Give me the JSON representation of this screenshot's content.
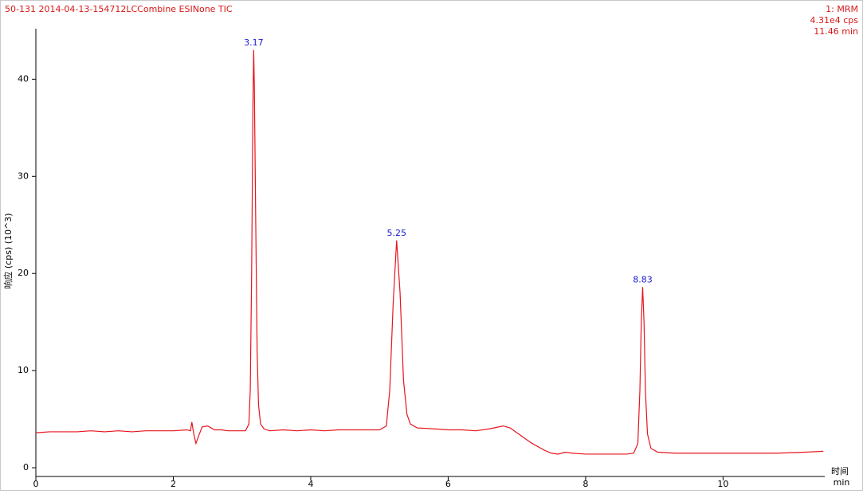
{
  "chart_data": {
    "type": "line",
    "title": "50-131 2014-04-13-154712LCCombine ESINone TIC",
    "info": [
      "1: MRM",
      "4.31e4 cps",
      "11.46 min"
    ],
    "y_label": "响应 (cps) (10^3)",
    "x_label": "时间",
    "x_unit": "min",
    "color": "#e8141c",
    "label_color": "#1a1ad0",
    "x": [
      0,
      0.2,
      0.4,
      0.6,
      0.8,
      1.0,
      1.2,
      1.4,
      1.6,
      1.8,
      2.0,
      2.2,
      2.25,
      2.27,
      2.3,
      2.33,
      2.37,
      2.42,
      2.5,
      2.55,
      2.6,
      2.7,
      2.8,
      3.0,
      3.05,
      3.1,
      3.12,
      3.14,
      3.16,
      3.17,
      3.18,
      3.2,
      3.22,
      3.24,
      3.27,
      3.32,
      3.4,
      3.6,
      3.8,
      4.0,
      4.2,
      4.4,
      4.6,
      4.8,
      5.0,
      5.1,
      5.15,
      5.2,
      5.25,
      5.3,
      5.35,
      5.4,
      5.45,
      5.55,
      5.8,
      6.0,
      6.2,
      6.4,
      6.6,
      6.8,
      6.9,
      7.0,
      7.1,
      7.2,
      7.3,
      7.4,
      7.5,
      7.6,
      7.7,
      7.8,
      8.0,
      8.2,
      8.4,
      8.6,
      8.7,
      8.76,
      8.79,
      8.81,
      8.83,
      8.85,
      8.87,
      8.9,
      8.95,
      9.05,
      9.3,
      9.6,
      10.0,
      10.4,
      10.8,
      11.2,
      11.46
    ],
    "values": [
      3.6,
      3.7,
      3.7,
      3.7,
      3.8,
      3.7,
      3.8,
      3.7,
      3.8,
      3.8,
      3.8,
      3.9,
      3.8,
      4.7,
      3.4,
      2.5,
      3.3,
      4.2,
      4.3,
      4.1,
      3.9,
      3.9,
      3.8,
      3.8,
      3.8,
      4.5,
      8,
      20,
      38,
      43.0,
      39,
      25,
      12,
      6.5,
      4.5,
      4.0,
      3.8,
      3.9,
      3.8,
      3.9,
      3.8,
      3.9,
      3.9,
      3.9,
      3.9,
      4.3,
      8,
      17,
      23.4,
      18,
      9,
      5.5,
      4.5,
      4.1,
      4.0,
      3.9,
      3.9,
      3.8,
      4.0,
      4.3,
      4.1,
      3.6,
      3.1,
      2.6,
      2.2,
      1.8,
      1.5,
      1.4,
      1.6,
      1.5,
      1.4,
      1.4,
      1.4,
      1.4,
      1.5,
      2.5,
      8,
      15,
      18.6,
      15,
      8,
      3.5,
      2.0,
      1.6,
      1.5,
      1.5,
      1.5,
      1.5,
      1.5,
      1.6,
      1.7
    ],
    "peak_labels": [
      3.17,
      5.25,
      8.83
    ],
    "xlim": [
      0,
      11.48
    ],
    "xticks": [
      0,
      2,
      4,
      6,
      8,
      10
    ],
    "ylim": [
      -0.9,
      45.2
    ],
    "yticks": [
      0,
      10,
      20,
      30,
      40
    ]
  }
}
